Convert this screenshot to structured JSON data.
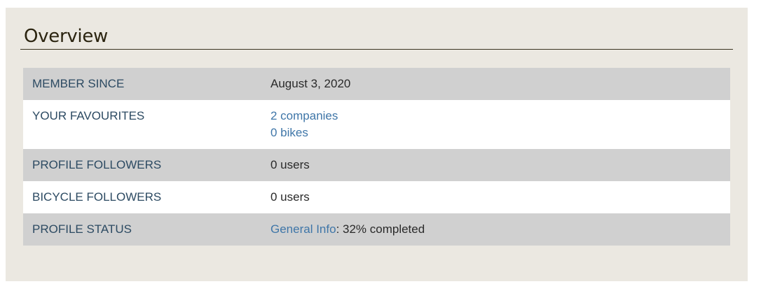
{
  "overview": {
    "title": "Overview",
    "rows": [
      {
        "label": "MEMBER SINCE",
        "value": "August 3, 2020"
      },
      {
        "label": "YOUR FAVOURITES",
        "links": [
          "2 companies",
          "0 bikes"
        ]
      },
      {
        "label": "PROFILE FOLLOWERS",
        "value": "0 users"
      },
      {
        "label": "BICYCLE FOLLOWERS",
        "value": "0 users"
      },
      {
        "label": "PROFILE STATUS",
        "link": "General Info",
        "value": ": 32% completed"
      }
    ]
  },
  "colors": {
    "panel_bg": "#ebe8e1",
    "row_gray": "#d0d0d0",
    "label_text": "#2c4a62",
    "link": "#3f76a8"
  }
}
